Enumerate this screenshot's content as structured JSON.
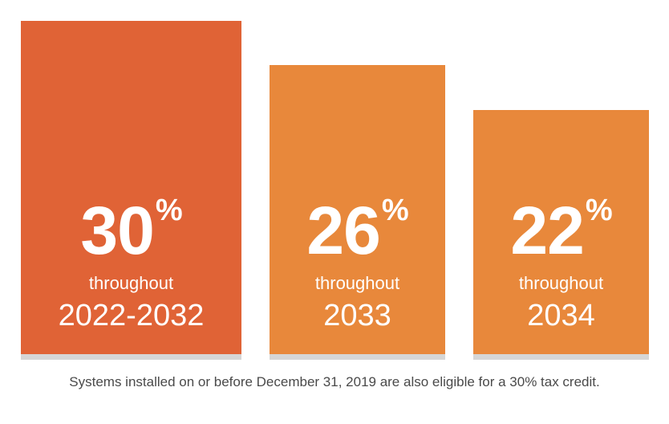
{
  "chart_data": {
    "type": "bar",
    "categories": [
      "2022-2032",
      "2033",
      "2034"
    ],
    "values": [
      30,
      26,
      22
    ],
    "unit": "%",
    "ylim": [
      0,
      30
    ],
    "bar_prefix": "throughout",
    "colors": [
      "#e06336",
      "#e8883b",
      "#e8883b"
    ],
    "shadow_color": "#d6d6d6",
    "footnote": "Systems installed on or before December 31, 2019 are also eligible for a 30% tax credit."
  }
}
